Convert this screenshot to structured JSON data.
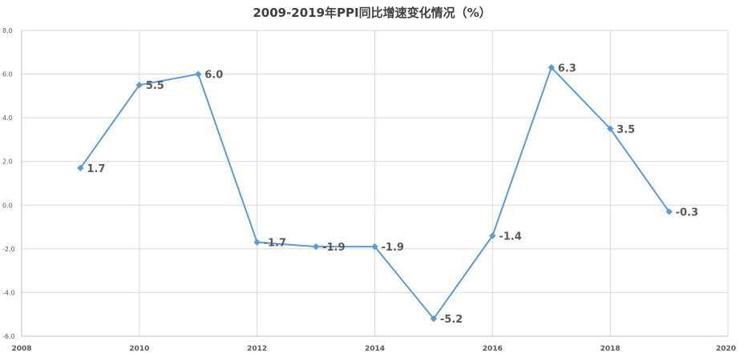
{
  "chart_data": {
    "type": "scatter",
    "title": "2009-2019年PPI同比增速变化情况（%）",
    "xlabel": "",
    "ylabel": "",
    "xlim": [
      2008,
      2020
    ],
    "ylim": [
      -6.0,
      8.0
    ],
    "x_ticks": [
      2008,
      2010,
      2012,
      2014,
      2016,
      2018,
      2020
    ],
    "y_ticks": [
      -6.0,
      -4.0,
      -2.0,
      0.0,
      2.0,
      4.0,
      6.0,
      8.0
    ],
    "x_tick_labels": [
      "2008",
      "2010",
      "2012",
      "2014",
      "2016",
      "2018",
      "2020"
    ],
    "y_tick_labels": [
      "-6.0",
      "-4.0",
      "-2.0",
      "0.0",
      "2.0",
      "4.0",
      "6.0",
      "8.0"
    ],
    "grid": true,
    "legend": "none",
    "series": [
      {
        "color": "#5b9bd5",
        "marker": "diamond",
        "line": "straight",
        "points": [
          {
            "x": 2009,
            "y": 1.7,
            "label": "1.7"
          },
          {
            "x": 2010,
            "y": 5.5,
            "label": "5.5"
          },
          {
            "x": 2011,
            "y": 6.0,
            "label": "6.0"
          },
          {
            "x": 2012,
            "y": -1.7,
            "label": "-1.7"
          },
          {
            "x": 2013,
            "y": -1.9,
            "label": "-1.9"
          },
          {
            "x": 2014,
            "y": -1.9,
            "label": "-1.9"
          },
          {
            "x": 2015,
            "y": -5.2,
            "label": "-5.2"
          },
          {
            "x": 2016,
            "y": -1.4,
            "label": "-1.4"
          },
          {
            "x": 2017,
            "y": 6.3,
            "label": "6.3"
          },
          {
            "x": 2018,
            "y": 3.5,
            "label": "3.5"
          },
          {
            "x": 2019,
            "y": -0.3,
            "label": "-0.3"
          }
        ]
      }
    ]
  }
}
